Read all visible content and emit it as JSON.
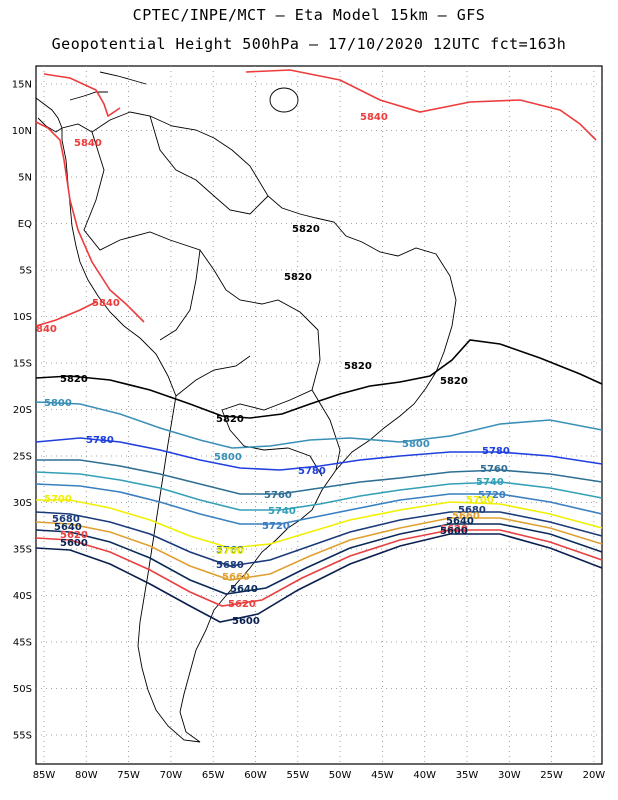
{
  "title_line1": "CPTEC/INPE/MCT –  Eta Model 15km – GFS",
  "title_line2": "Geopotential Height 500hPa – 17/10/2020 12UTC fct=163h",
  "lat_ticks": [
    "15N",
    "10N",
    "5N",
    "EQ",
    "5S",
    "10S",
    "15S",
    "20S",
    "25S",
    "30S",
    "35S",
    "40S",
    "45S",
    "50S",
    "55S"
  ],
  "lon_ticks": [
    "85W",
    "80W",
    "75W",
    "70W",
    "65W",
    "60W",
    "55W",
    "50W",
    "45W",
    "40W",
    "35W",
    "30W",
    "25W",
    "20W"
  ],
  "contour_colors": {
    "5840": "#ee3b3b",
    "5820": "#000000",
    "5800": "#3a8fb7",
    "5780": "#1f3fe0",
    "5760": "#2e6f94",
    "5740": "#33a0b8",
    "5720": "#3a7fc0",
    "5700": "#f0f000",
    "5680": "#1a3a7a",
    "5660": "#e0a030",
    "5640": "#0a2a5a",
    "5620": "#e84040",
    "5600": "#0a1f50"
  },
  "contour_labels": [
    {
      "text": "5840",
      "level": "5840"
    },
    {
      "text": "5840",
      "level": "5840"
    },
    {
      "text": "5840",
      "level": "5840"
    },
    {
      "text": "840",
      "level": "5840"
    },
    {
      "text": "5820",
      "level": "5820"
    },
    {
      "text": "5820",
      "level": "5820"
    },
    {
      "text": "5820",
      "level": "5820"
    },
    {
      "text": "5820",
      "level": "5820"
    },
    {
      "text": "5820",
      "level": "5820"
    },
    {
      "text": "5820",
      "level": "5820"
    },
    {
      "text": "5800",
      "level": "5800"
    },
    {
      "text": "5800",
      "level": "5800"
    },
    {
      "text": "5800",
      "level": "5800"
    },
    {
      "text": "5780",
      "level": "5780"
    },
    {
      "text": "5780",
      "level": "5780"
    },
    {
      "text": "5780",
      "level": "5780"
    },
    {
      "text": "5760",
      "level": "5760"
    },
    {
      "text": "5760",
      "level": "5760"
    },
    {
      "text": "5760",
      "level": "5760"
    },
    {
      "text": "5740",
      "level": "5740"
    },
    {
      "text": "5740",
      "level": "5740"
    },
    {
      "text": "5720",
      "level": "5720"
    },
    {
      "text": "5720",
      "level": "5720"
    },
    {
      "text": "5700",
      "level": "5700"
    },
    {
      "text": "5700",
      "level": "5700"
    },
    {
      "text": "5700",
      "level": "5700"
    },
    {
      "text": "5680",
      "level": "5680"
    },
    {
      "text": "5680",
      "level": "5680"
    },
    {
      "text": "5680",
      "level": "5680"
    },
    {
      "text": "5660",
      "level": "5660"
    },
    {
      "text": "5660",
      "level": "5660"
    },
    {
      "text": "5640",
      "level": "5640"
    },
    {
      "text": "5640",
      "level": "5640"
    },
    {
      "text": "5640",
      "level": "5640"
    },
    {
      "text": "5620",
      "level": "5620"
    },
    {
      "text": "5620",
      "level": "5620"
    },
    {
      "text": "5620",
      "level": "5620"
    },
    {
      "text": "5600",
      "level": "5600"
    },
    {
      "text": "5600",
      "level": "5600"
    },
    {
      "text": "5600",
      "level": "5600"
    }
  ]
}
